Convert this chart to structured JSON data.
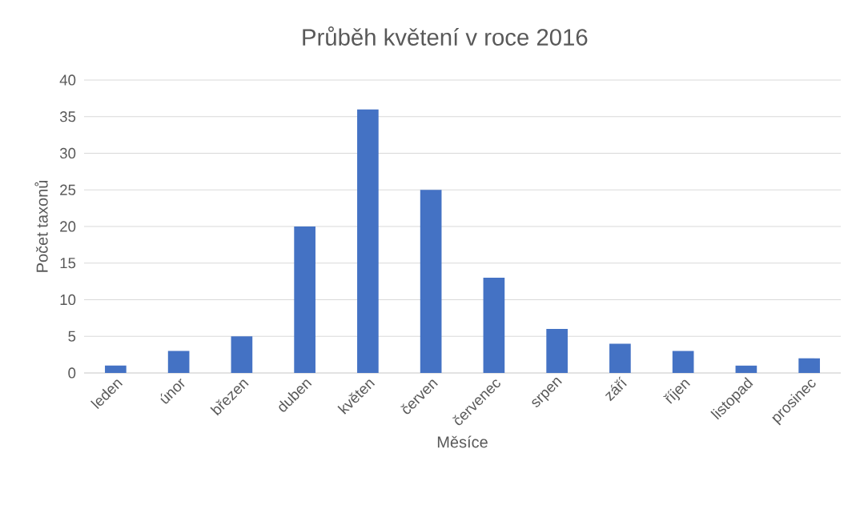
{
  "chart_data": {
    "type": "bar",
    "title": "Průběh květení v roce 2016",
    "xlabel": "Měsíce",
    "ylabel": "Počet taxonů",
    "categories": [
      "leden",
      "únor",
      "březen",
      "duben",
      "květen",
      "červen",
      "červenec",
      "srpen",
      "září",
      "říjen",
      "listopad",
      "prosinec"
    ],
    "values": [
      1,
      3,
      5,
      20,
      36,
      25,
      13,
      6,
      4,
      3,
      1,
      2
    ],
    "color": "#4472c4",
    "ylim": [
      0,
      40
    ],
    "yticks": [
      0,
      5,
      10,
      15,
      20,
      25,
      30,
      35,
      40
    ],
    "grid": "y"
  }
}
